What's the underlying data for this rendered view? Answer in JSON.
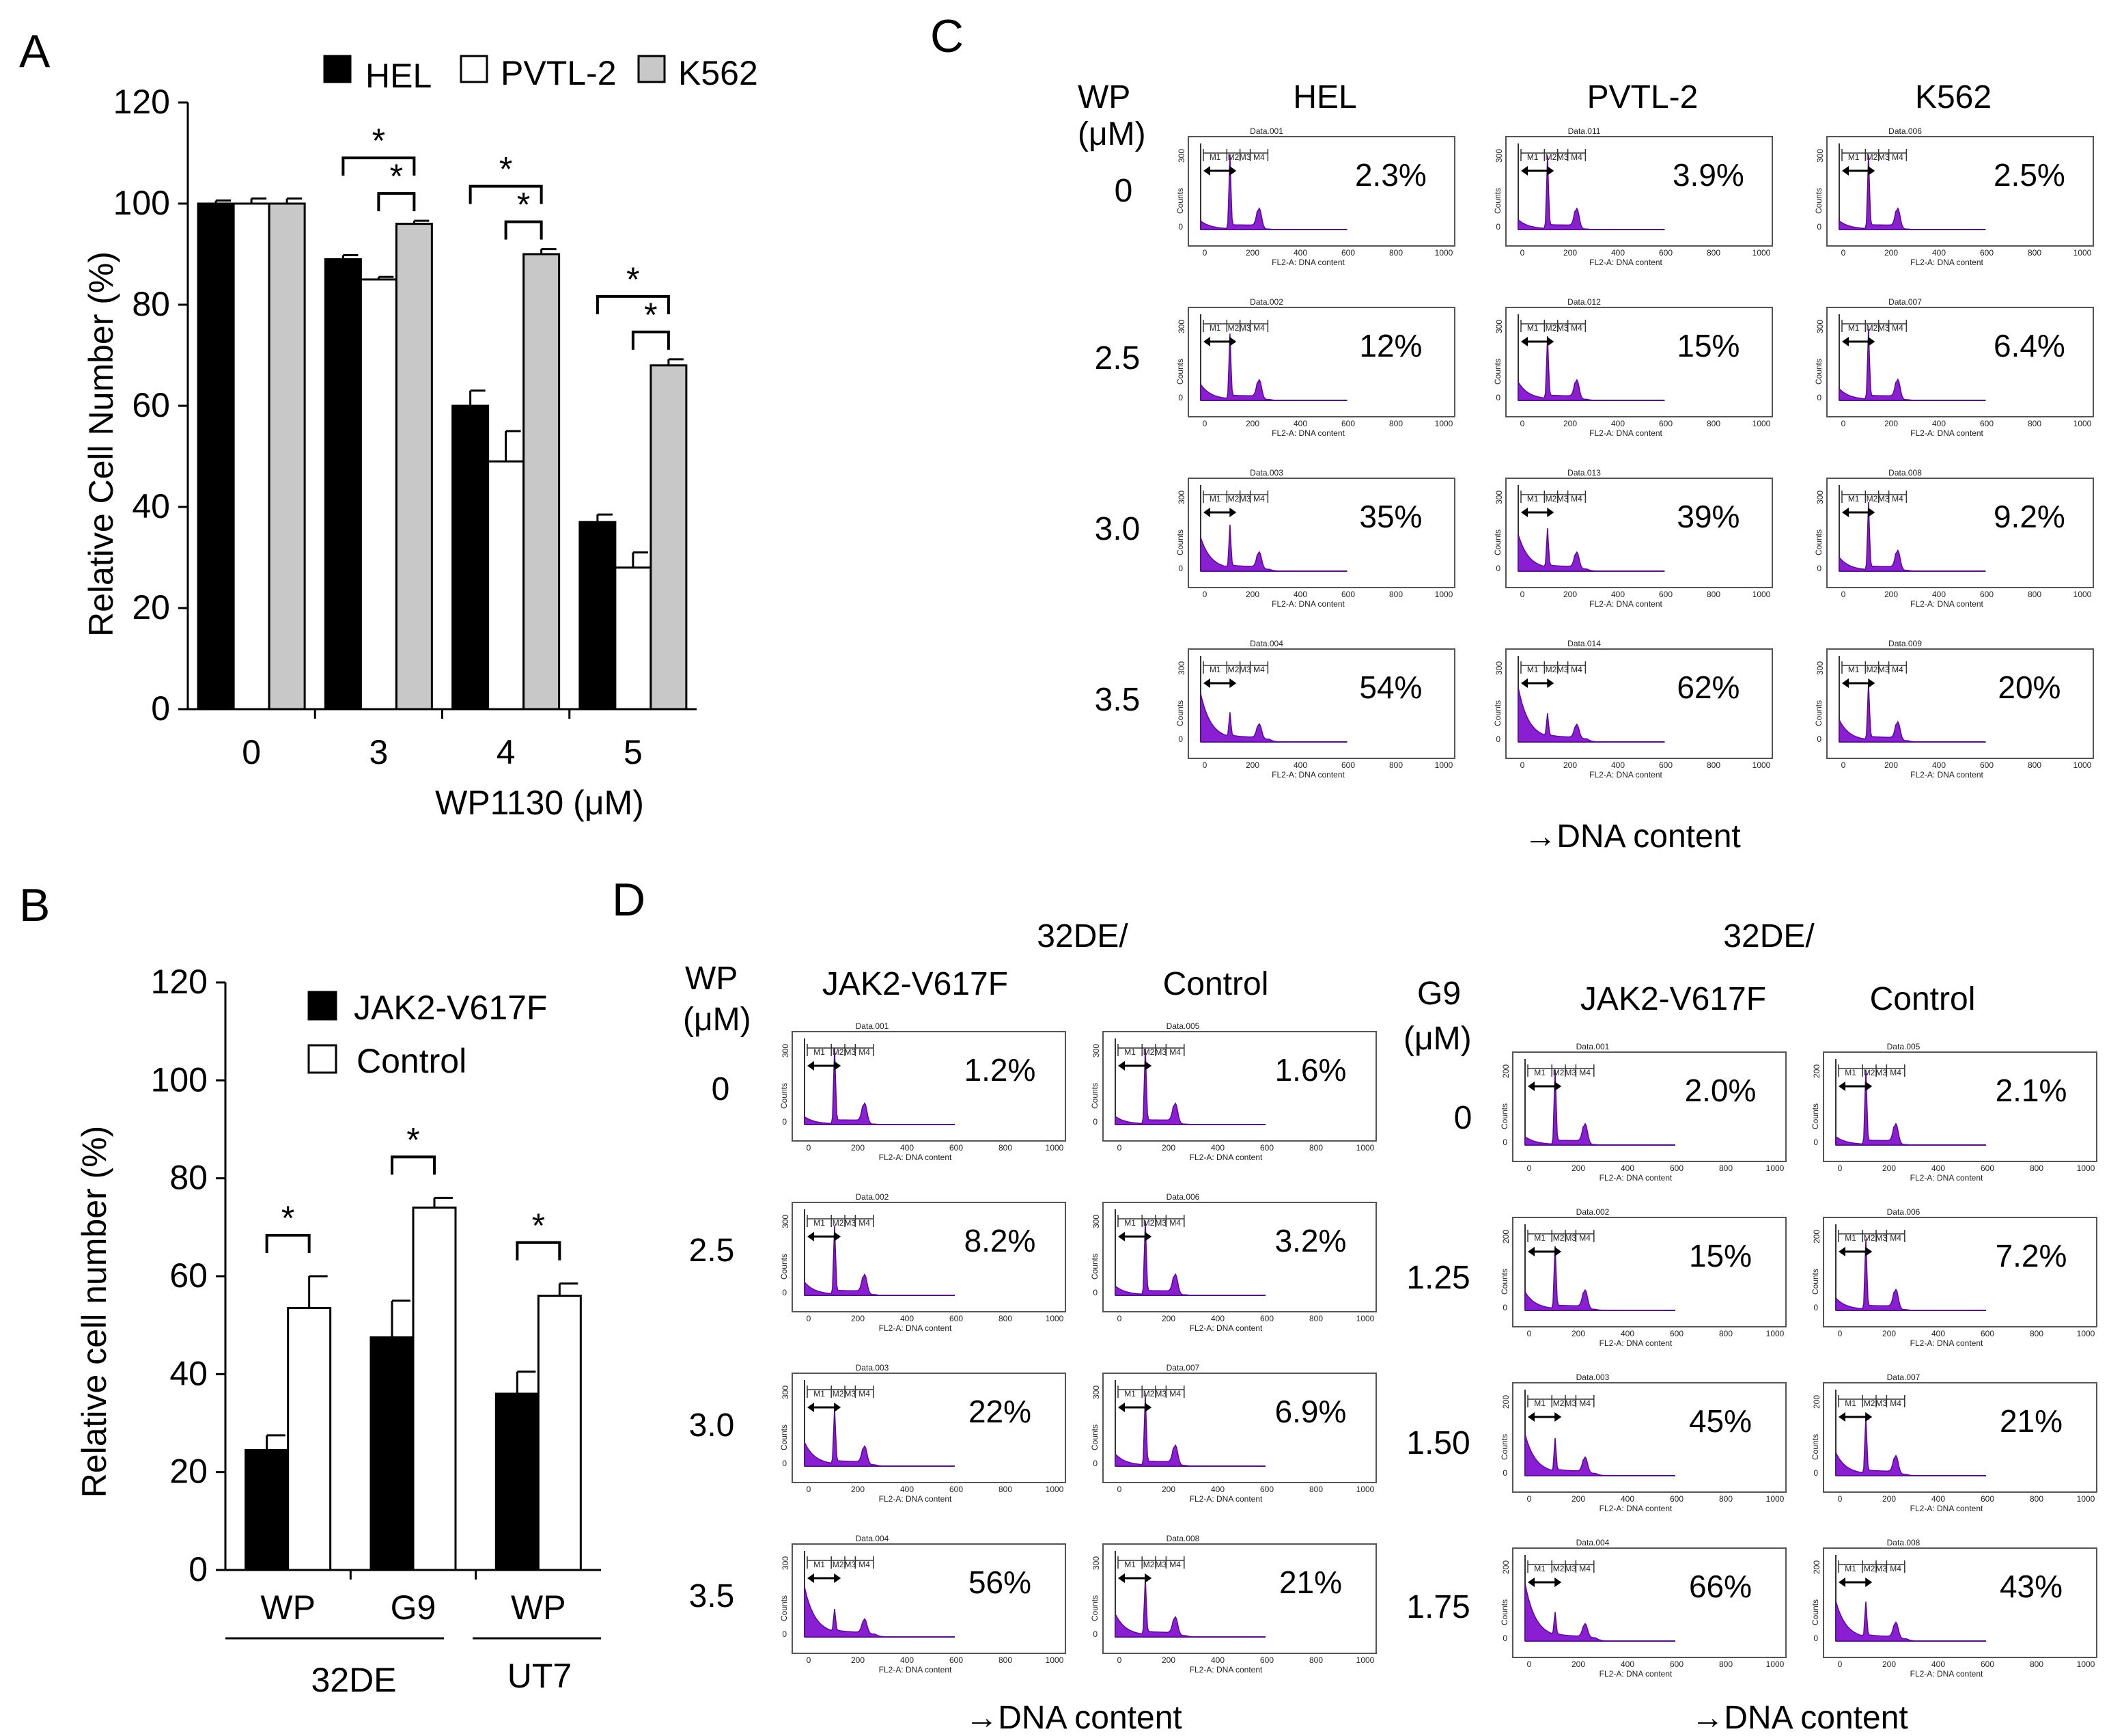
{
  "panels": {
    "A": "A",
    "B": "B",
    "C": "C",
    "D": "D"
  },
  "chart_data": [
    {
      "type": "bar",
      "panel": "A",
      "categories": [
        "0",
        "3",
        "4",
        "5"
      ],
      "xlabel": "WP1130 (μM)",
      "ylabel": "Relative Cell Number (%)",
      "ylim": [
        0,
        120
      ],
      "yticks": [
        "0",
        "20",
        "40",
        "60",
        "80",
        "100",
        "120"
      ],
      "series": [
        {
          "name": "HEL",
          "color": "#000000",
          "values": [
            100,
            89,
            60,
            37
          ],
          "errors": [
            0.6,
            0.8,
            3,
            1.5
          ]
        },
        {
          "name": "PVTL-2",
          "color": "#ffffff",
          "values": [
            100,
            85,
            49,
            28
          ],
          "errors": [
            1,
            0.5,
            6,
            3
          ]
        },
        {
          "name": "K562",
          "color": "#c8c8c8",
          "values": [
            100,
            96,
            90,
            68
          ],
          "errors": [
            1,
            0.6,
            1,
            1.2
          ]
        }
      ],
      "significance": "*"
    },
    {
      "type": "bar",
      "panel": "B",
      "categories": [
        "WP",
        "G9",
        "WP"
      ],
      "groups": [
        "32DE",
        "UT7"
      ],
      "ylabel": "Relative cell number (%)",
      "ylim": [
        0,
        120
      ],
      "yticks": [
        "0",
        "20",
        "40",
        "60",
        "80",
        "100",
        "120"
      ],
      "series": [
        {
          "name": "JAK2-V617F",
          "color": "#000000",
          "values": [
            24.5,
            47.5,
            36
          ],
          "errors": [
            3,
            7.5,
            4.5
          ]
        },
        {
          "name": "Control",
          "color": "#ffffff",
          "values": [
            53.5,
            74,
            56
          ],
          "errors": [
            6.5,
            2,
            2.5
          ]
        }
      ],
      "significance": "*"
    }
  ],
  "panelC": {
    "wp_label_1": "WP",
    "wp_label_2": "(μM)",
    "columns": [
      "HEL",
      "PVTL-2",
      "K562"
    ],
    "rows": [
      "0",
      "2.5",
      "3.0",
      "3.5"
    ],
    "percents": [
      [
        "2.3%",
        "3.9%",
        "2.5%"
      ],
      [
        "12%",
        "15%",
        "6.4%"
      ],
      [
        "35%",
        "39%",
        "9.2%"
      ],
      [
        "54%",
        "62%",
        "20%"
      ]
    ],
    "file_labels": [
      [
        "Data.001",
        "Data.011",
        "Data.006"
      ],
      [
        "Data.002",
        "Data.012",
        "Data.007"
      ],
      [
        "Data.003",
        "Data.013",
        "Data.008"
      ],
      [
        "Data.004",
        "Data.014",
        "Data.009"
      ]
    ],
    "xaxis_label": "→DNA content"
  },
  "panelD": {
    "left": {
      "title": "32DE/",
      "drug_label_1": "WP",
      "drug_label_2": "(μM)",
      "columns": [
        "JAK2-V617F",
        "Control"
      ],
      "rows": [
        "0",
        "2.5",
        "3.0",
        "3.5"
      ],
      "percents": [
        [
          "1.2%",
          "1.6%"
        ],
        [
          "8.2%",
          "3.2%"
        ],
        [
          "22%",
          "6.9%"
        ],
        [
          "56%",
          "21%"
        ]
      ],
      "file_labels": [
        [
          "Data.001",
          "Data.005"
        ],
        [
          "Data.002",
          "Data.006"
        ],
        [
          "Data.003",
          "Data.007"
        ],
        [
          "Data.004",
          "Data.008"
        ]
      ],
      "xaxis_label": "→DNA content"
    },
    "right": {
      "title": "32DE/",
      "drug_label_1": "G9",
      "drug_label_2": "(μM)",
      "columns": [
        "JAK2-V617F",
        "Control"
      ],
      "rows": [
        "0",
        "1.25",
        "1.50",
        "1.75"
      ],
      "percents": [
        [
          "2.0%",
          "2.1%"
        ],
        [
          "15%",
          "7.2%"
        ],
        [
          "45%",
          "21%"
        ],
        [
          "66%",
          "43%"
        ]
      ],
      "file_labels": [
        [
          "Data.001",
          "Data.005"
        ],
        [
          "Data.002",
          "Data.006"
        ],
        [
          "Data.003",
          "Data.007"
        ],
        [
          "Data.004",
          "Data.008"
        ]
      ],
      "xaxis_label": "→DNA content"
    }
  },
  "flow_axis": {
    "x_label": "FL2-A: DNA content",
    "x_ticks": [
      "0",
      "200",
      "400",
      "600",
      "800",
      "1000"
    ],
    "y_label": "Counts",
    "y_max_c": "300",
    "y_max_d": "300",
    "y_max_g9": "200",
    "y_zero": "0",
    "gates": [
      "M1",
      "M2",
      "M3",
      "M4"
    ]
  },
  "colors": {
    "histogram": "#8a1ed2",
    "histogram_edge": "#5a0a96",
    "bar_gray": "#c8c8c8"
  }
}
